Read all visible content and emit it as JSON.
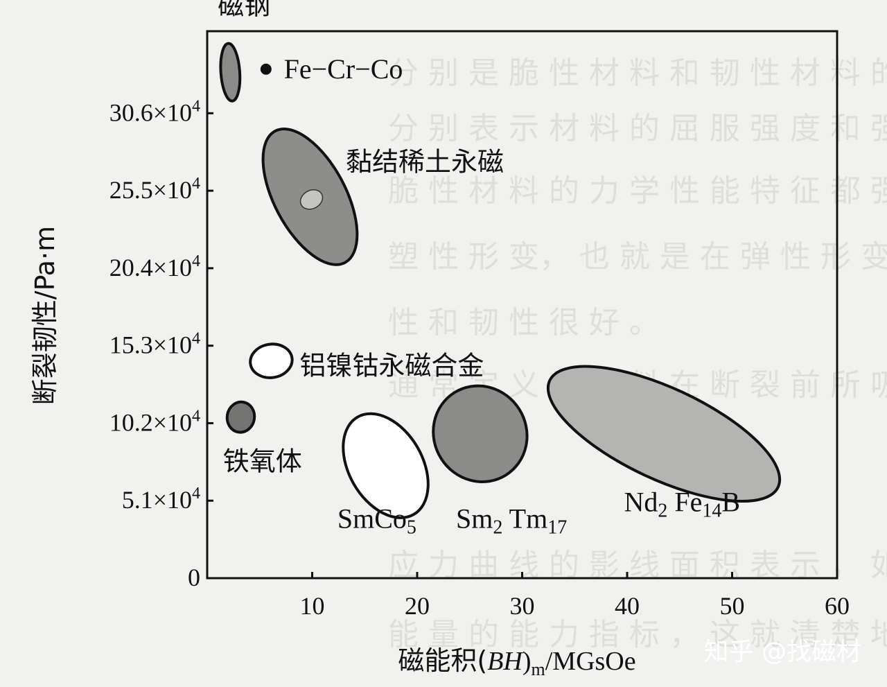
{
  "chart_data": {
    "type": "scatter",
    "xlabel": "磁能积(BH)m/MGsOe",
    "xlabel_parts": {
      "prefix": "磁能积(",
      "italic": "BH",
      "close": ")",
      "sub": "m",
      "suffix": "/MGsOe"
    },
    "ylabel": "断裂韧性/Pa·m",
    "xlim": [
      0,
      60
    ],
    "ylim": [
      0,
      36
    ],
    "x_ticks": [
      {
        "value": 10,
        "label": "10"
      },
      {
        "value": 20,
        "label": "20"
      },
      {
        "value": 30,
        "label": "30"
      },
      {
        "value": 40,
        "label": "40"
      },
      {
        "value": 50,
        "label": "50"
      },
      {
        "value": 60,
        "label": "60"
      }
    ],
    "y_ticks": [
      {
        "value": 0,
        "label": "0"
      },
      {
        "value": 5.1,
        "label": "5.1×10",
        "exp": "4"
      },
      {
        "value": 10.2,
        "label": "10.2×10",
        "exp": "4"
      },
      {
        "value": 15.3,
        "label": "15.3×10",
        "exp": "4"
      },
      {
        "value": 20.4,
        "label": "20.4×10",
        "exp": "4"
      },
      {
        "value": 25.5,
        "label": "25.5×10",
        "exp": "4"
      },
      {
        "value": 30.6,
        "label": "30.6×10",
        "exp": "4"
      }
    ],
    "regions": [
      {
        "name": "磁钢",
        "cx": 2.2,
        "cy": 33.3,
        "rx": 0.9,
        "ry": 1.9,
        "rot": -4,
        "fill": "#8a8a88"
      },
      {
        "name": "黏结稀土永磁",
        "cx": 9.8,
        "cy": 25.1,
        "rx": 3.4,
        "ry": 4.9,
        "rot": -28,
        "fill": "#8d8d8b",
        "inner": {
          "cx": 9.8,
          "cy": 24.9,
          "rx": 1.1,
          "ry": 0.6,
          "fill": "#c4c4c2"
        }
      },
      {
        "name": "铝镍钴永磁合金",
        "cx": 6.1,
        "cy": 14.3,
        "rx": 2.0,
        "ry": 1.1,
        "rot": -8,
        "fill": "#ffffff"
      },
      {
        "name": "铁氧体",
        "cx": 3.2,
        "cy": 10.6,
        "rx": 1.3,
        "ry": 1.0,
        "rot": 10,
        "fill": "#737371"
      },
      {
        "name": "SmCo5",
        "cx": 17.0,
        "cy": 7.4,
        "rx": 3.5,
        "ry": 3.7,
        "rot": -30,
        "fill": "#ffffff"
      },
      {
        "name": "Sm2 Tm17",
        "cx": 26.0,
        "cy": 9.5,
        "rx": 4.4,
        "ry": 3.2,
        "rot": -32,
        "fill": "#8b8b89"
      },
      {
        "name": "Nd2Fe14B",
        "cx": 43.5,
        "cy": 9.5,
        "rx": 12.0,
        "ry": 3.0,
        "rot": 25,
        "fill": "#b4b4b2"
      }
    ],
    "points": [
      {
        "name": "Fe-Cr-Co",
        "x": 5.6,
        "y": 33.5
      }
    ],
    "labels": [
      {
        "text": "磁钢",
        "sub": [],
        "style": "cjk",
        "anchor": [
          1.0,
          37.1
        ]
      },
      {
        "text": "Fe−Cr−Co",
        "sub": [],
        "style": "latin",
        "anchor": [
          7.3,
          32.9
        ]
      },
      {
        "text": "黏结稀土永磁",
        "sub": [],
        "style": "cjk",
        "anchor": [
          13.2,
          26.8
        ]
      },
      {
        "text": "铝镍钴永磁合金",
        "sub": [],
        "style": "cjk",
        "anchor": [
          8.8,
          13.4
        ]
      },
      {
        "text": "铁氧体",
        "sub": [],
        "style": "cjk",
        "anchor": [
          1.5,
          7.1
        ]
      },
      {
        "segments": [
          [
            "SmCo",
            ""
          ],
          [
            "5",
            "sub"
          ]
        ],
        "style": "latin",
        "anchor": [
          12.4,
          3.3
        ]
      },
      {
        "segments": [
          [
            "Sm",
            ""
          ],
          [
            "2",
            "sub"
          ],
          [
            " Tm",
            ""
          ],
          [
            "17",
            "sub"
          ]
        ],
        "style": "latin",
        "anchor": [
          23.7,
          3.3
        ]
      },
      {
        "segments": [
          [
            "Nd",
            ""
          ],
          [
            "2",
            "sub"
          ],
          [
            " Fe",
            ""
          ],
          [
            "14",
            "sub"
          ],
          [
            "B",
            ""
          ]
        ],
        "style": "latin",
        "anchor": [
          39.7,
          4.4
        ]
      }
    ],
    "grid": false,
    "legend": "none"
  },
  "watermark": {
    "text": "知乎 @找磁材"
  }
}
